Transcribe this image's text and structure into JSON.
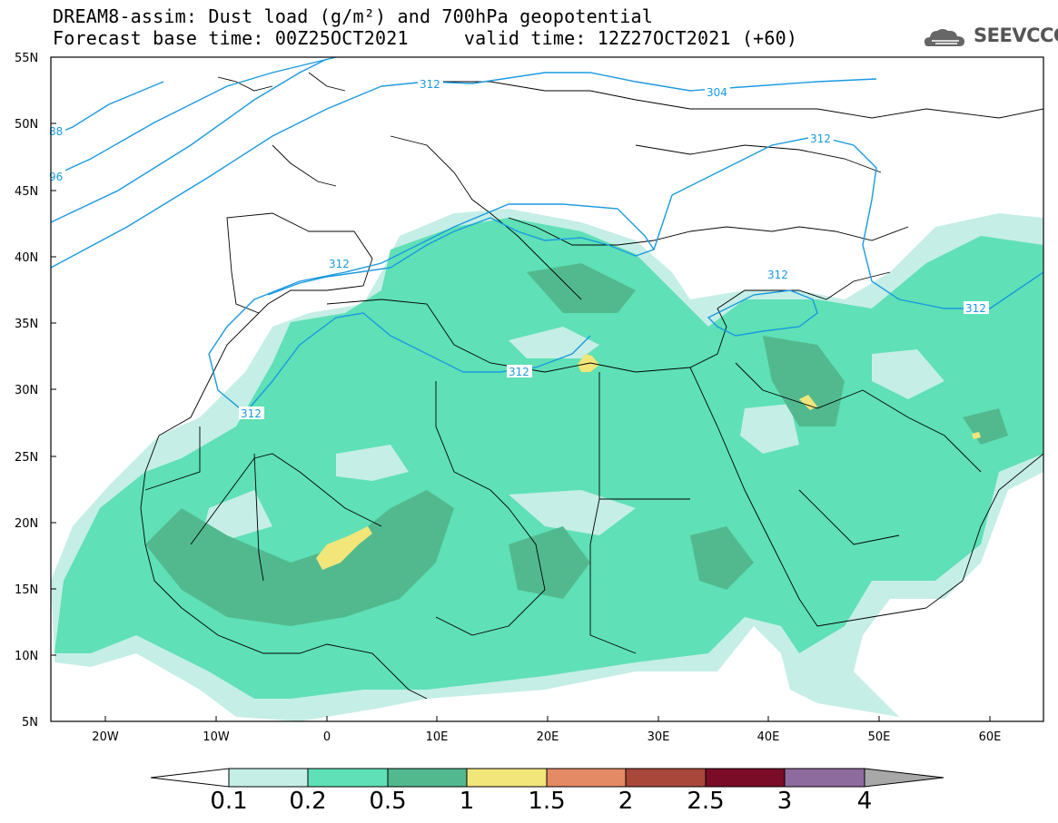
{
  "header": {
    "title_line1": "DREAM8-assim: Dust load (g/m²) and 700hPa geopotential",
    "title_line2": "Forecast base time: 00Z25OCT2021     valid time: 12Z27OCT2021 (+60)"
  },
  "logo": {
    "text": "SEEVCCC",
    "icon": "cloud-icon"
  },
  "axes": {
    "lat_labels": [
      "55N",
      "50N",
      "45N",
      "40N",
      "35N",
      "30N",
      "25N",
      "20N",
      "15N",
      "10N",
      "5N"
    ],
    "lon_labels": [
      "20W",
      "10W",
      "0",
      "10E",
      "20E",
      "30E",
      "40E",
      "50E",
      "60E"
    ]
  },
  "contours": {
    "labels": [
      "88",
      "96",
      "312",
      "304",
      "312",
      "312",
      "312",
      "312",
      "312",
      "312"
    ]
  },
  "colorbar": {
    "labels": [
      "0.1",
      "0.2",
      "0.5",
      "1",
      "1.5",
      "2",
      "2.5",
      "3",
      "4"
    ],
    "colors": [
      "#ffffff",
      "#c5eee6",
      "#5fe0b6",
      "#52b98f",
      "#f2e57a",
      "#e48a64",
      "#a9473a",
      "#7a0c27",
      "#8e6b9e",
      "#a8a8a8"
    ]
  },
  "colors": {
    "contour": "#1a9ae0",
    "dust_low": "#c5eee6",
    "dust_mid": "#5fe0b6",
    "dust_high": "#52b98f",
    "dust_peak": "#f2e57a"
  }
}
